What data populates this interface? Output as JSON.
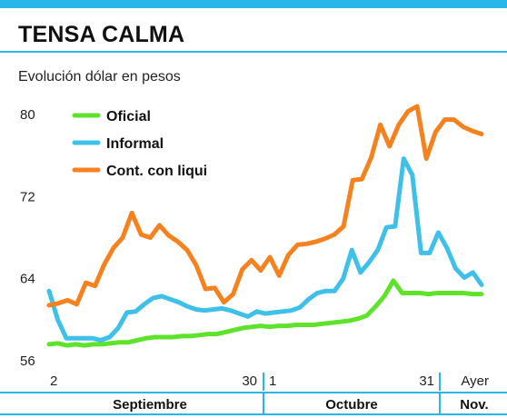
{
  "header": {
    "title": "TENSA CALMA",
    "subtitle": "Evolución dólar en pesos"
  },
  "colors": {
    "accent": "#29b6e8",
    "oficial": "#5fe22c",
    "informal": "#3ec0e8",
    "ccl": "#f5821f"
  },
  "chart_data": {
    "type": "line",
    "title": "TENSA CALMA",
    "subtitle": "Evolución dólar en pesos",
    "ylim": [
      56,
      81
    ],
    "yticks": [
      {
        "value": 56,
        "label": "56"
      },
      {
        "value": 64,
        "label": "64"
      },
      {
        "value": 72,
        "label": "72"
      },
      {
        "value": 80,
        "label": "80"
      }
    ],
    "xticks": [
      "2",
      "30",
      "1",
      "31",
      "Ayer"
    ],
    "months": [
      "Septiembre",
      "Octubre",
      "Nov."
    ],
    "grid": false,
    "legend_position": "top-left",
    "series": [
      {
        "name": "Oficial",
        "color": "#5fe22c",
        "values": [
          57.6,
          57.7,
          57.5,
          57.6,
          57.5,
          57.6,
          57.6,
          57.7,
          57.8,
          57.8,
          58.0,
          58.2,
          58.3,
          58.3,
          58.3,
          58.4,
          58.4,
          58.5,
          58.6,
          58.6,
          58.8,
          59.0,
          59.2,
          59.3,
          59.4,
          59.3,
          59.4,
          59.4,
          59.5,
          59.5,
          59.5,
          59.6,
          59.7,
          59.8,
          59.9,
          60.1,
          60.4,
          61.3,
          62.3,
          63.8,
          62.6,
          62.6,
          62.6,
          62.5,
          62.6,
          62.6,
          62.6,
          62.6,
          62.5,
          62.5
        ]
      },
      {
        "name": "Informal",
        "color": "#3ec0e8",
        "values": [
          62.8,
          60.0,
          58.2,
          58.2,
          58.2,
          58.2,
          58.0,
          58.3,
          59.2,
          60.7,
          60.8,
          61.5,
          62.1,
          62.3,
          62.0,
          61.7,
          61.3,
          61.0,
          60.9,
          61.0,
          61.1,
          60.9,
          60.6,
          60.3,
          60.8,
          60.6,
          60.7,
          60.8,
          60.9,
          61.2,
          62.0,
          62.6,
          62.8,
          62.8,
          64.0,
          66.8,
          64.6,
          65.6,
          66.8,
          69.0,
          69.1,
          75.7,
          74.1,
          66.5,
          66.5,
          68.5,
          67.0,
          65.0,
          64.1,
          64.6,
          63.4
        ]
      },
      {
        "name": "Cont. con liqui",
        "color": "#f5821f",
        "values": [
          61.4,
          61.6,
          61.9,
          61.5,
          63.6,
          63.3,
          65.4,
          67.0,
          68.0,
          70.4,
          68.3,
          68.0,
          69.2,
          68.2,
          67.6,
          66.8,
          65.3,
          63.0,
          63.1,
          61.7,
          62.5,
          64.9,
          65.8,
          64.8,
          66.1,
          64.3,
          66.3,
          67.3,
          67.4,
          67.6,
          67.9,
          68.3,
          69.1,
          73.6,
          73.7,
          75.8,
          79.0,
          76.9,
          79.0,
          80.3,
          80.8,
          75.7,
          78.3,
          79.5,
          79.5,
          78.8,
          78.4,
          78.1
        ]
      }
    ]
  }
}
